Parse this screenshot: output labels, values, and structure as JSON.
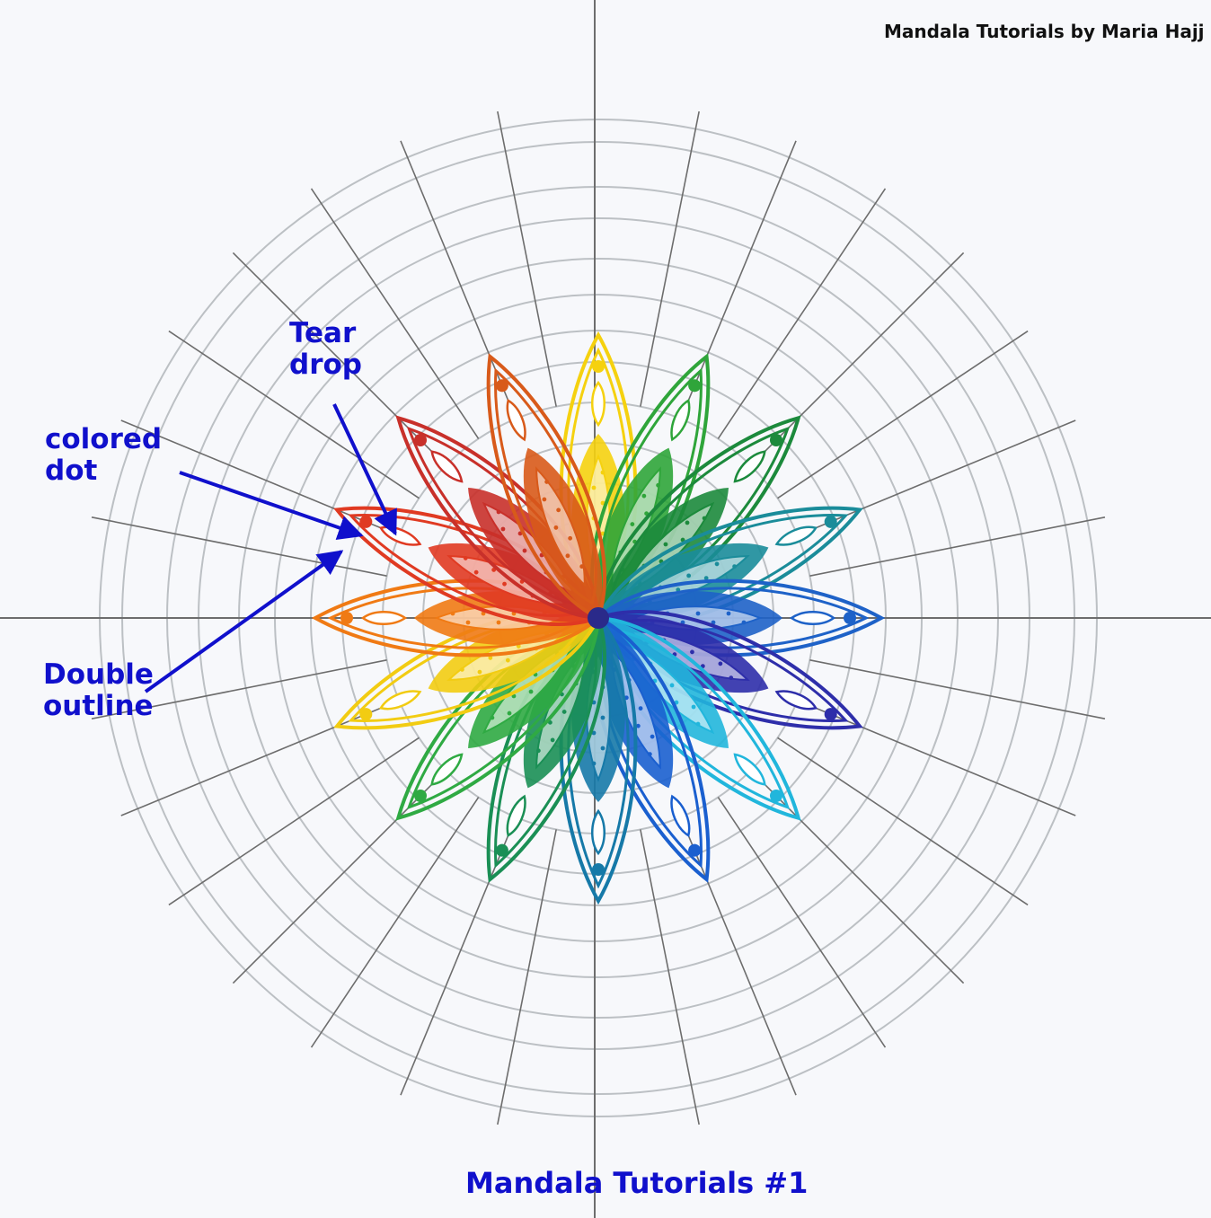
{
  "header": {
    "credit": "Mandala Tutorials by Maria Hajj"
  },
  "footer": {
    "title": "Mandala Tutorials #1"
  },
  "annotations": {
    "tear_drop": [
      "Tear",
      "drop"
    ],
    "colored_dot": [
      "colored",
      "dot"
    ],
    "double_outline": [
      "Double",
      "outline"
    ]
  },
  "colors": {
    "annotation": "#1010cc",
    "credit": "#111111",
    "grid_circle": "#bcc0c4",
    "grid_line": "#6d6d6d",
    "petals": [
      "#f5d10f",
      "#2fa53a",
      "#1c8a3c",
      "#1a8c9a",
      "#1e62c8",
      "#2e2eaa",
      "#21b6dc",
      "#1a5fcf",
      "#1679a8",
      "#1a8f55",
      "#2faa43",
      "#f2cc12",
      "#f07a14",
      "#e03a22",
      "#c8302a",
      "#d85a1a"
    ]
  },
  "mandala": {
    "petal_icon": "tear-drop-petal-icon",
    "dot_icon": "colored-dot-icon"
  }
}
